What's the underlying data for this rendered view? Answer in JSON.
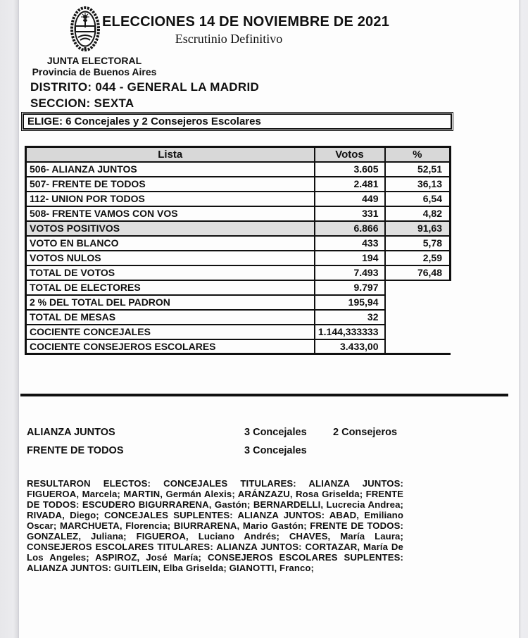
{
  "page": {
    "title": "ELECCIONES 14 DE NOVIEMBRE DE 2021",
    "subtitle": "Escrutinio Definitivo",
    "authority": "JUNTA ELECTORAL",
    "authority_sub": "Provincia de Buenos Aires",
    "district": "DISTRITO: 044 - GENERAL LA MADRID",
    "section": "SECCION: SEXTA",
    "elige": "ELIGE: 6 Concejales y 2 Consejeros Escolares",
    "logo": "buenos-aires-province-coat-of-arms"
  },
  "results_table": {
    "headers": {
      "lista": "Lista",
      "votos": "Votos",
      "pct": "%"
    },
    "rows": [
      {
        "lista": "506- ALIANZA JUNTOS",
        "votos": "3.605",
        "pct": "52,51",
        "shaded": false,
        "has_pct": true
      },
      {
        "lista": "507- FRENTE DE TODOS",
        "votos": "2.481",
        "pct": "36,13",
        "shaded": false,
        "has_pct": true
      },
      {
        "lista": "112- UNION POR TODOS",
        "votos": "449",
        "pct": "6,54",
        "shaded": false,
        "has_pct": true
      },
      {
        "lista": "508- FRENTE VAMOS CON VOS",
        "votos": "331",
        "pct": "4,82",
        "shaded": false,
        "has_pct": true
      },
      {
        "lista": "VOTOS POSITIVOS",
        "votos": "6.866",
        "pct": "91,63",
        "shaded": true,
        "has_pct": true
      },
      {
        "lista": "VOTO EN BLANCO",
        "votos": "433",
        "pct": "5,78",
        "shaded": false,
        "has_pct": true
      },
      {
        "lista": "VOTOS NULOS",
        "votos": "194",
        "pct": "2,59",
        "shaded": false,
        "has_pct": true
      },
      {
        "lista": "TOTAL DE VOTOS",
        "votos": "7.493",
        "pct": "76,48",
        "shaded": false,
        "has_pct": true
      },
      {
        "lista": "TOTAL DE ELECTORES",
        "votos": "9.797",
        "pct": "",
        "shaded": false,
        "has_pct": false
      },
      {
        "lista": "2 % DEL TOTAL DEL PADRON",
        "votos": "195,94",
        "pct": "",
        "shaded": false,
        "has_pct": false
      },
      {
        "lista": "TOTAL DE MESAS",
        "votos": "32",
        "pct": "",
        "shaded": false,
        "has_pct": false
      },
      {
        "lista": "COCIENTE CONCEJALES",
        "votos": "1.144,333333",
        "pct": "",
        "shaded": false,
        "has_pct": false
      },
      {
        "lista": "COCIENTE CONSEJEROS ESCOLARES",
        "votos": "3.433,00",
        "pct": "",
        "shaded": false,
        "has_pct": false
      }
    ]
  },
  "seats": [
    {
      "party": "ALIANZA JUNTOS",
      "concejales": "3 Concejales",
      "consejeros": "2 Consejeros"
    },
    {
      "party": "FRENTE DE TODOS",
      "concejales": "3 Concejales",
      "consejeros": ""
    }
  ],
  "elected": {
    "text": "RESULTARON ELECTOS: CONCEJALES TITULARES:  ALIANZA JUNTOS: FIGUEROA, Marcela; MARTIN, Germán Alexis; ARÁNZAZU, Rosa Griselda; FRENTE DE TODOS: ESCUDERO BIGURRARENA, Gastón; BERNARDELLI, Lucrecia Andrea; RIVADA, Diego;  CONCEJALES SUPLENTES:  ALIANZA JUNTOS: ABAD, Emiliano Oscar; MARCHUETA, Florencia; BIURRARENA, Mario Gastón;  FRENTE DE TODOS: GONZALEZ, Juliana; FIGUEROA, Luciano Andrés; CHAVES, María Laura;  CONSEJEROS ESCOLARES TITULARES: ALIANZA JUNTOS: CORTAZAR, María De Los Angeles; ASPIROZ, José María; CONSEJEROS ESCOLARES SUPLENTES:  ALIANZA JUNTOS: GUITLEIN, Elba Griselda; GIANOTTI, Franco;"
  },
  "colors": {
    "text": "#101010",
    "page_bg": "#fdfdfd",
    "scan_edge": "#e9e9ec",
    "table_header_bg": "#d8d8d8",
    "shaded_row_bg": "#dfdfdf",
    "border": "#101010"
  }
}
